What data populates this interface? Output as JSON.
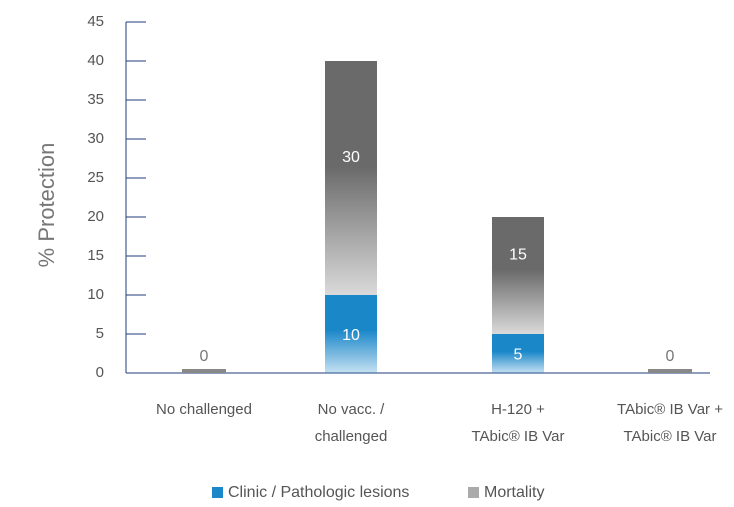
{
  "chart_data": {
    "type": "stacked_bar",
    "categories": [
      "No challenged",
      "No vacc. /\nchallenged",
      "H-120 +\nTAbic® IB Var",
      "TAbic® IB Var +\nTAbic® IB Var"
    ],
    "series": [
      {
        "name": "Clinic / Pathologic lesions",
        "color": "#1a87c9",
        "values": [
          0,
          10,
          5,
          0
        ]
      },
      {
        "name": "Mortality",
        "color": "#6a6a6a",
        "values": [
          0,
          30,
          15,
          0
        ]
      }
    ],
    "y_label": "% Protection",
    "ylim": [
      0,
      45
    ],
    "yticks": [
      0,
      5,
      10,
      15,
      20,
      25,
      30,
      35,
      40,
      45
    ]
  }
}
